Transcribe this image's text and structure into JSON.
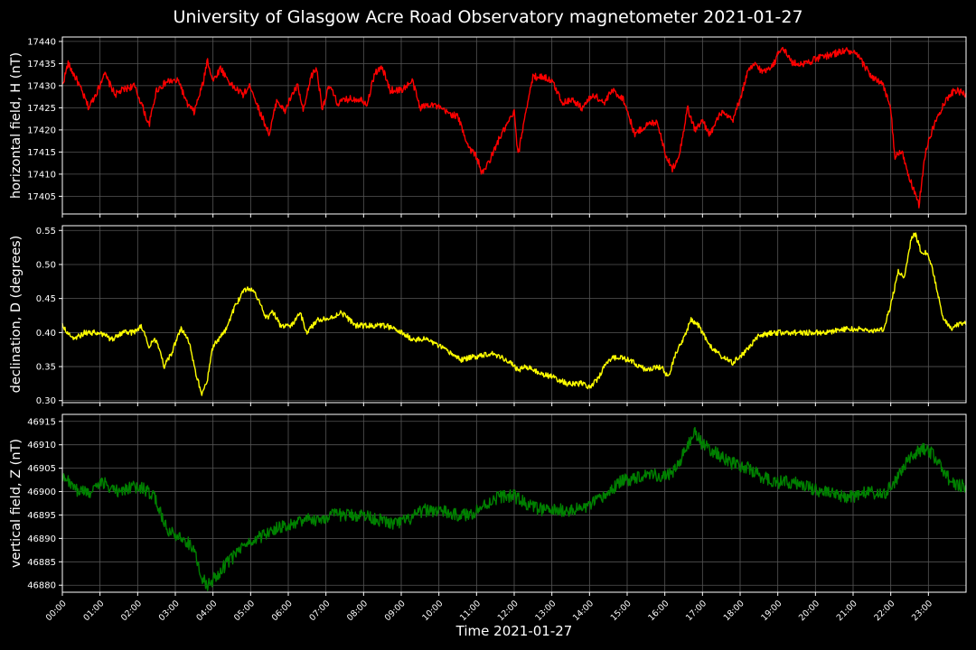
{
  "title": "University of Glasgow Acre Road Observatory magnetometer 2021-01-27",
  "xlabel": "Time 2021-01-27",
  "chart_data": {
    "type": "line",
    "x_ticks": [
      "00:00",
      "01:00",
      "02:00",
      "03:00",
      "04:00",
      "05:00",
      "06:00",
      "07:00",
      "08:00",
      "09:00",
      "10:00",
      "11:00",
      "12:00",
      "13:00",
      "14:00",
      "15:00",
      "16:00",
      "17:00",
      "18:00",
      "19:00",
      "20:00",
      "21:00",
      "22:00",
      "23:00"
    ],
    "xlim_hours": [
      0,
      24
    ],
    "grid": true,
    "panels": [
      {
        "ylabel": "horizontal field, H (nT)",
        "color": "#ff0000",
        "ylim": [
          17401,
          17441
        ],
        "y_ticks": [
          "17405",
          "17410",
          "17415",
          "17420",
          "17425",
          "17430",
          "17435",
          "17440"
        ],
        "y_tick_values": [
          17405,
          17410,
          17415,
          17420,
          17425,
          17430,
          17435,
          17440
        ],
        "noise": 0.8,
        "points": [
          [
            0,
            17430
          ],
          [
            0.15,
            17435
          ],
          [
            0.4,
            17431
          ],
          [
            0.7,
            17425
          ],
          [
            1.0,
            17430
          ],
          [
            1.1,
            17433
          ],
          [
            1.4,
            17428
          ],
          [
            1.6,
            17429
          ],
          [
            1.9,
            17430
          ],
          [
            2.1,
            17426
          ],
          [
            2.3,
            17421
          ],
          [
            2.5,
            17429
          ],
          [
            2.8,
            17431
          ],
          [
            3.1,
            17431
          ],
          [
            3.3,
            17426
          ],
          [
            3.5,
            17424
          ],
          [
            3.75,
            17431
          ],
          [
            3.85,
            17436
          ],
          [
            4.0,
            17431
          ],
          [
            4.2,
            17434
          ],
          [
            4.5,
            17430
          ],
          [
            4.8,
            17428
          ],
          [
            5.0,
            17430
          ],
          [
            5.2,
            17425
          ],
          [
            5.5,
            17419
          ],
          [
            5.7,
            17427
          ],
          [
            5.9,
            17424
          ],
          [
            6.1,
            17428
          ],
          [
            6.25,
            17430
          ],
          [
            6.4,
            17424
          ],
          [
            6.6,
            17432
          ],
          [
            6.75,
            17434
          ],
          [
            6.9,
            17425
          ],
          [
            7.1,
            17430
          ],
          [
            7.3,
            17426
          ],
          [
            7.6,
            17427
          ],
          [
            7.9,
            17427
          ],
          [
            8.1,
            17426
          ],
          [
            8.3,
            17433
          ],
          [
            8.5,
            17434
          ],
          [
            8.7,
            17429
          ],
          [
            9.0,
            17429
          ],
          [
            9.3,
            17431
          ],
          [
            9.5,
            17425
          ],
          [
            9.8,
            17426
          ],
          [
            10.2,
            17424
          ],
          [
            10.5,
            17423
          ],
          [
            10.8,
            17416
          ],
          [
            11.0,
            17414
          ],
          [
            11.15,
            17410
          ],
          [
            11.4,
            17414
          ],
          [
            11.6,
            17418
          ],
          [
            11.8,
            17421
          ],
          [
            12.0,
            17424
          ],
          [
            12.1,
            17414
          ],
          [
            12.3,
            17424
          ],
          [
            12.5,
            17432
          ],
          [
            12.8,
            17432
          ],
          [
            13.0,
            17431
          ],
          [
            13.3,
            17426
          ],
          [
            13.5,
            17427
          ],
          [
            13.8,
            17425
          ],
          [
            14.1,
            17428
          ],
          [
            14.4,
            17426
          ],
          [
            14.6,
            17429
          ],
          [
            14.9,
            17427
          ],
          [
            15.2,
            17419
          ],
          [
            15.5,
            17421
          ],
          [
            15.8,
            17422
          ],
          [
            16.0,
            17415
          ],
          [
            16.2,
            17411
          ],
          [
            16.4,
            17415
          ],
          [
            16.6,
            17425
          ],
          [
            16.8,
            17420
          ],
          [
            17.0,
            17422
          ],
          [
            17.2,
            17419
          ],
          [
            17.5,
            17424
          ],
          [
            17.8,
            17422
          ],
          [
            18.0,
            17427
          ],
          [
            18.2,
            17433
          ],
          [
            18.4,
            17435
          ],
          [
            18.6,
            17433
          ],
          [
            18.9,
            17435
          ],
          [
            19.1,
            17439
          ],
          [
            19.4,
            17435
          ],
          [
            19.7,
            17435
          ],
          [
            20.0,
            17436
          ],
          [
            20.4,
            17437
          ],
          [
            20.8,
            17438
          ],
          [
            21.1,
            17437
          ],
          [
            21.5,
            17432
          ],
          [
            21.8,
            17430
          ],
          [
            22.0,
            17425
          ],
          [
            22.1,
            17414
          ],
          [
            22.3,
            17415
          ],
          [
            22.5,
            17409
          ],
          [
            22.7,
            17404
          ],
          [
            22.75,
            17403
          ],
          [
            22.9,
            17414
          ],
          [
            23.1,
            17420
          ],
          [
            23.4,
            17426
          ],
          [
            23.7,
            17429
          ],
          [
            24.0,
            17428
          ]
        ]
      },
      {
        "ylabel": "declination, D (degrees)",
        "color": "#ffff00",
        "ylim": [
          0.297,
          0.557
        ],
        "y_ticks": [
          "0.30",
          "0.35",
          "0.40",
          "0.45",
          "0.50",
          "0.55"
        ],
        "y_tick_values": [
          0.3,
          0.35,
          0.4,
          0.45,
          0.5,
          0.55
        ],
        "noise": 0.004,
        "points": [
          [
            0,
            0.41
          ],
          [
            0.3,
            0.39
          ],
          [
            0.6,
            0.4
          ],
          [
            1.0,
            0.4
          ],
          [
            1.3,
            0.39
          ],
          [
            1.6,
            0.4
          ],
          [
            1.9,
            0.4
          ],
          [
            2.1,
            0.41
          ],
          [
            2.3,
            0.38
          ],
          [
            2.5,
            0.39
          ],
          [
            2.7,
            0.35
          ],
          [
            2.9,
            0.37
          ],
          [
            3.15,
            0.405
          ],
          [
            3.35,
            0.39
          ],
          [
            3.55,
            0.34
          ],
          [
            3.7,
            0.31
          ],
          [
            3.85,
            0.33
          ],
          [
            4.0,
            0.38
          ],
          [
            4.3,
            0.4
          ],
          [
            4.6,
            0.44
          ],
          [
            4.8,
            0.46
          ],
          [
            5.0,
            0.465
          ],
          [
            5.2,
            0.45
          ],
          [
            5.4,
            0.42
          ],
          [
            5.6,
            0.43
          ],
          [
            5.8,
            0.41
          ],
          [
            6.1,
            0.41
          ],
          [
            6.3,
            0.43
          ],
          [
            6.5,
            0.4
          ],
          [
            6.8,
            0.42
          ],
          [
            7.1,
            0.42
          ],
          [
            7.4,
            0.43
          ],
          [
            7.8,
            0.41
          ],
          [
            8.2,
            0.41
          ],
          [
            8.6,
            0.41
          ],
          [
            9.0,
            0.4
          ],
          [
            9.3,
            0.39
          ],
          [
            9.7,
            0.39
          ],
          [
            10.0,
            0.38
          ],
          [
            10.3,
            0.37
          ],
          [
            10.6,
            0.36
          ],
          [
            11.0,
            0.365
          ],
          [
            11.4,
            0.37
          ],
          [
            11.8,
            0.36
          ],
          [
            12.1,
            0.345
          ],
          [
            12.3,
            0.35
          ],
          [
            12.7,
            0.34
          ],
          [
            13.0,
            0.335
          ],
          [
            13.4,
            0.325
          ],
          [
            13.8,
            0.325
          ],
          [
            14.0,
            0.32
          ],
          [
            14.2,
            0.33
          ],
          [
            14.5,
            0.36
          ],
          [
            14.8,
            0.365
          ],
          [
            15.2,
            0.355
          ],
          [
            15.5,
            0.345
          ],
          [
            15.9,
            0.35
          ],
          [
            16.1,
            0.335
          ],
          [
            16.3,
            0.37
          ],
          [
            16.5,
            0.39
          ],
          [
            16.7,
            0.42
          ],
          [
            16.9,
            0.41
          ],
          [
            17.2,
            0.38
          ],
          [
            17.5,
            0.365
          ],
          [
            17.8,
            0.355
          ],
          [
            18.1,
            0.37
          ],
          [
            18.5,
            0.395
          ],
          [
            18.9,
            0.4
          ],
          [
            19.4,
            0.4
          ],
          [
            19.8,
            0.4
          ],
          [
            20.3,
            0.4
          ],
          [
            20.7,
            0.405
          ],
          [
            21.2,
            0.405
          ],
          [
            21.5,
            0.402
          ],
          [
            21.8,
            0.405
          ],
          [
            22.0,
            0.44
          ],
          [
            22.2,
            0.49
          ],
          [
            22.35,
            0.48
          ],
          [
            22.55,
            0.54
          ],
          [
            22.65,
            0.545
          ],
          [
            22.8,
            0.52
          ],
          [
            23.0,
            0.515
          ],
          [
            23.2,
            0.47
          ],
          [
            23.4,
            0.42
          ],
          [
            23.6,
            0.405
          ],
          [
            23.8,
            0.412
          ],
          [
            24.0,
            0.415
          ]
        ]
      },
      {
        "ylabel": "vertical field, Z (nT)",
        "color": "#008000",
        "ylim": [
          46878.5,
          46916.5
        ],
        "y_ticks": [
          "46880",
          "46885",
          "46890",
          "46895",
          "46900",
          "46905",
          "46910",
          "46915"
        ],
        "y_tick_values": [
          46880,
          46885,
          46890,
          46895,
          46900,
          46905,
          46910,
          46915
        ],
        "noise": 1.4,
        "points": [
          [
            0,
            46903
          ],
          [
            0.2,
            46902
          ],
          [
            0.4,
            46900
          ],
          [
            0.8,
            46900
          ],
          [
            1.1,
            46902
          ],
          [
            1.4,
            46900
          ],
          [
            1.8,
            46901
          ],
          [
            2.0,
            46901
          ],
          [
            2.3,
            46900
          ],
          [
            2.5,
            46898
          ],
          [
            2.7,
            46893
          ],
          [
            2.9,
            46891
          ],
          [
            3.2,
            46890
          ],
          [
            3.5,
            46888
          ],
          [
            3.7,
            46882
          ],
          [
            3.85,
            46880
          ],
          [
            4.1,
            46882
          ],
          [
            4.4,
            46885
          ],
          [
            4.8,
            46888
          ],
          [
            5.2,
            46890
          ],
          [
            5.6,
            46892
          ],
          [
            6.0,
            46893
          ],
          [
            6.4,
            46894
          ],
          [
            6.8,
            46894
          ],
          [
            7.2,
            46895
          ],
          [
            7.6,
            46895
          ],
          [
            8.0,
            46895
          ],
          [
            8.4,
            46894
          ],
          [
            8.8,
            46893
          ],
          [
            9.2,
            46894
          ],
          [
            9.6,
            46896
          ],
          [
            10.0,
            46896
          ],
          [
            10.4,
            46895
          ],
          [
            10.8,
            46895
          ],
          [
            11.2,
            46897
          ],
          [
            11.6,
            46899
          ],
          [
            12.0,
            46899
          ],
          [
            12.4,
            46897
          ],
          [
            12.8,
            46896
          ],
          [
            13.2,
            46896
          ],
          [
            13.6,
            46896
          ],
          [
            14.0,
            46897
          ],
          [
            14.4,
            46899
          ],
          [
            14.8,
            46902
          ],
          [
            15.2,
            46903
          ],
          [
            15.6,
            46904
          ],
          [
            16.0,
            46903
          ],
          [
            16.3,
            46905
          ],
          [
            16.5,
            46908
          ],
          [
            16.8,
            46913
          ],
          [
            17.0,
            46910
          ],
          [
            17.4,
            46908
          ],
          [
            17.8,
            46906
          ],
          [
            18.2,
            46905
          ],
          [
            18.6,
            46903
          ],
          [
            19.0,
            46902
          ],
          [
            19.4,
            46902
          ],
          [
            19.8,
            46901
          ],
          [
            20.2,
            46900
          ],
          [
            20.6,
            46899
          ],
          [
            21.0,
            46899
          ],
          [
            21.4,
            46900
          ],
          [
            21.8,
            46899
          ],
          [
            22.1,
            46902
          ],
          [
            22.4,
            46906
          ],
          [
            22.8,
            46909
          ],
          [
            23.0,
            46909
          ],
          [
            23.3,
            46906
          ],
          [
            23.6,
            46902
          ],
          [
            24.0,
            46901
          ]
        ]
      }
    ]
  }
}
